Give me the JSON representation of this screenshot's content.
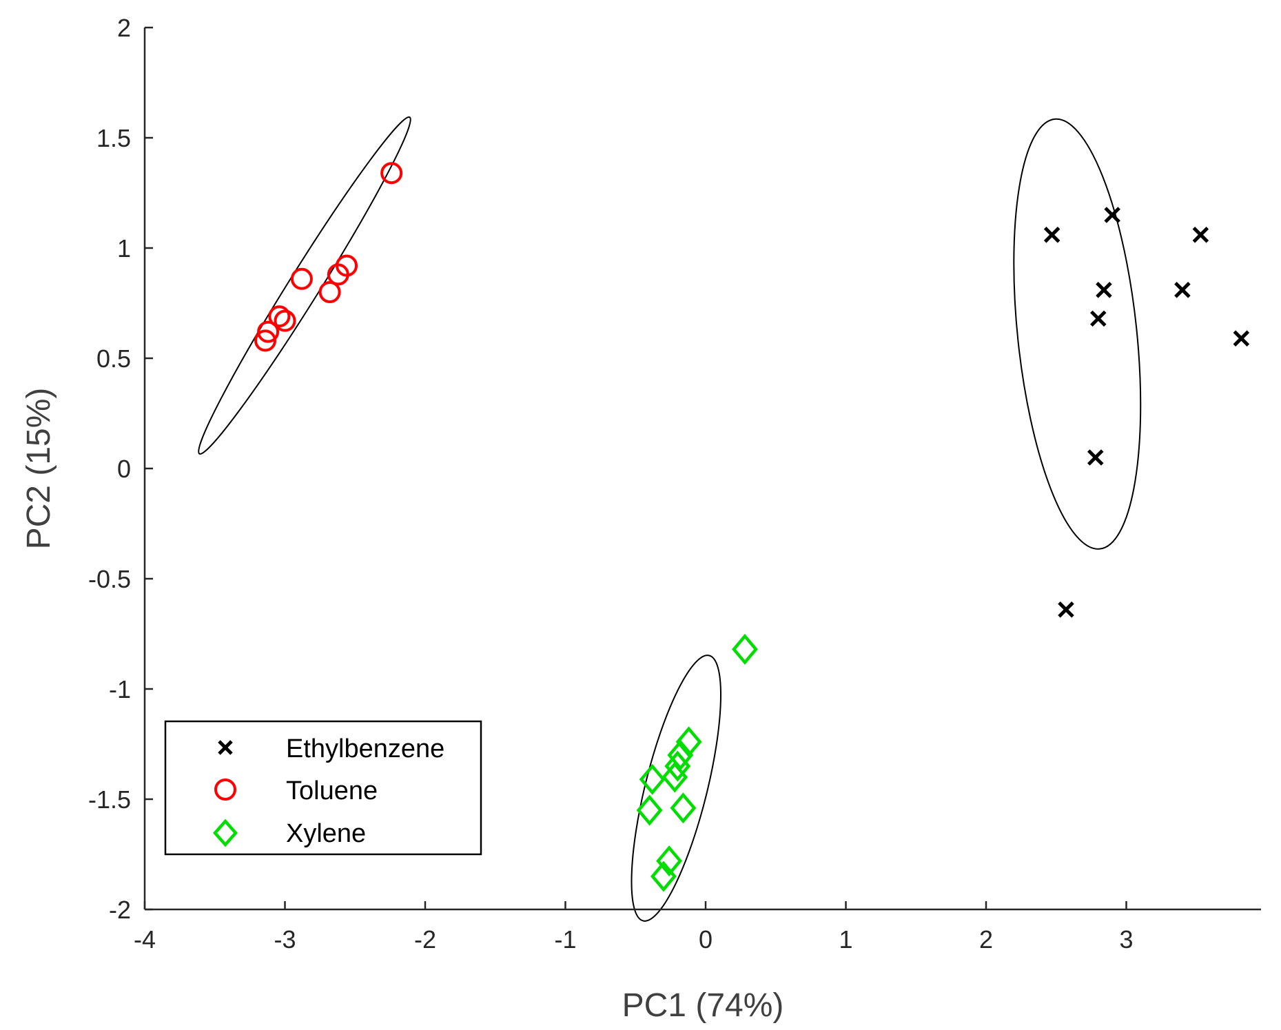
{
  "chart_data": {
    "type": "scatter",
    "title": "",
    "xlabel": "PC1 (74%)",
    "ylabel": "PC2 (15%)",
    "xlim": [
      -4,
      4
    ],
    "ylim": [
      -2,
      2
    ],
    "xticks": [
      -4,
      -3,
      -2,
      -1,
      0,
      1,
      2,
      3
    ],
    "xtick_labels": [
      "-4",
      "-3",
      "-2",
      "-1",
      "0",
      "1",
      "2",
      "3"
    ],
    "yticks": [
      -2,
      -1.5,
      -1,
      -0.5,
      0,
      0.5,
      1,
      1.5,
      2
    ],
    "ytick_labels": [
      "-2",
      "-1.5",
      "-1",
      "-0.5",
      "0",
      "0.5",
      "1",
      "1.5",
      "2"
    ],
    "grid": false,
    "legend_position": "bottom-left",
    "series": [
      {
        "name": "Ethylbenzene",
        "marker": "x",
        "color": "#000000",
        "points": [
          [
            2.47,
            1.06
          ],
          [
            2.9,
            1.15
          ],
          [
            3.53,
            1.06
          ],
          [
            2.84,
            0.81
          ],
          [
            3.4,
            0.81
          ],
          [
            2.8,
            0.68
          ],
          [
            3.82,
            0.59
          ],
          [
            2.78,
            0.05
          ],
          [
            2.57,
            -0.64
          ]
        ],
        "ellipse": {
          "cx": 2.65,
          "cy": 0.61,
          "rx": 0.98,
          "ry": 0.27,
          "angle": 96,
          "color": "#000000"
        }
      },
      {
        "name": "Toluene",
        "marker": "circle",
        "color": "#ff0000",
        "points": [
          [
            -2.24,
            1.34
          ],
          [
            -2.88,
            0.86
          ],
          [
            -2.56,
            0.92
          ],
          [
            -2.62,
            0.88
          ],
          [
            -2.68,
            0.8
          ],
          [
            -3.0,
            0.67
          ],
          [
            -3.04,
            0.69
          ],
          [
            -3.12,
            0.62
          ],
          [
            -3.14,
            0.58
          ]
        ],
        "ellipse": {
          "cx": -2.86,
          "cy": 0.83,
          "rx": 0.9,
          "ry": 0.07,
          "angle": 58,
          "color": "#000000"
        }
      },
      {
        "name": "Xylene",
        "marker": "diamond",
        "color": "#00dd00",
        "points": [
          [
            0.28,
            -0.82
          ],
          [
            -0.12,
            -1.24
          ],
          [
            -0.18,
            -1.3
          ],
          [
            -0.2,
            -1.35
          ],
          [
            -0.22,
            -1.4
          ],
          [
            -0.38,
            -1.41
          ],
          [
            -0.16,
            -1.54
          ],
          [
            -0.4,
            -1.55
          ],
          [
            -0.26,
            -1.78
          ],
          [
            -0.3,
            -1.85
          ]
        ],
        "ellipse": {
          "cx": -0.21,
          "cy": -1.45,
          "rx": 0.62,
          "ry": 0.14,
          "angle": 76,
          "color": "#000000"
        }
      }
    ]
  }
}
